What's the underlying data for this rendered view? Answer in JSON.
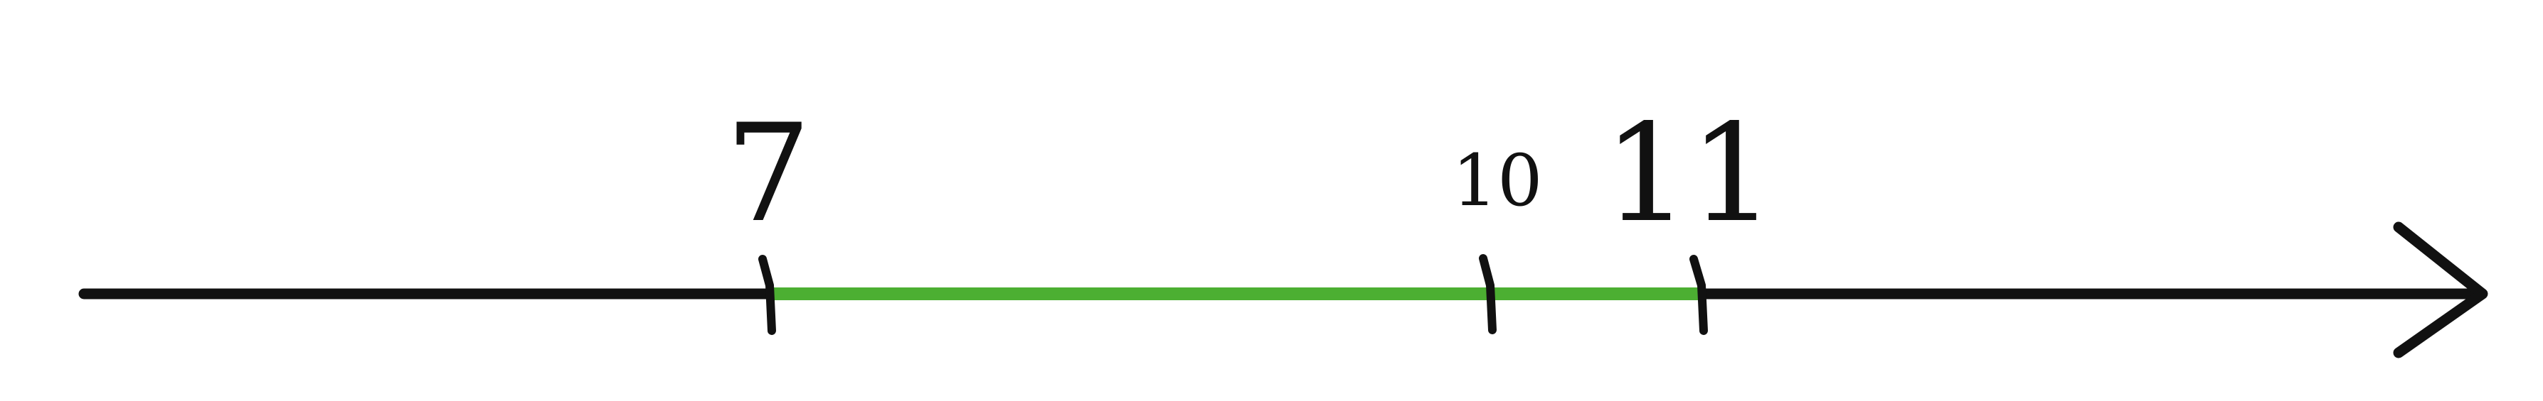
{
  "number_line": {
    "labels": {
      "seven": "7",
      "ten": "10",
      "eleven": "11"
    },
    "colors": {
      "axis": "#111111",
      "segment": "#4caf32",
      "background": "#ffffff"
    },
    "ticks": [
      "7",
      "10",
      "11"
    ],
    "highlighted_segment": {
      "from": 7,
      "to": 11
    },
    "arrow_direction": "right"
  }
}
